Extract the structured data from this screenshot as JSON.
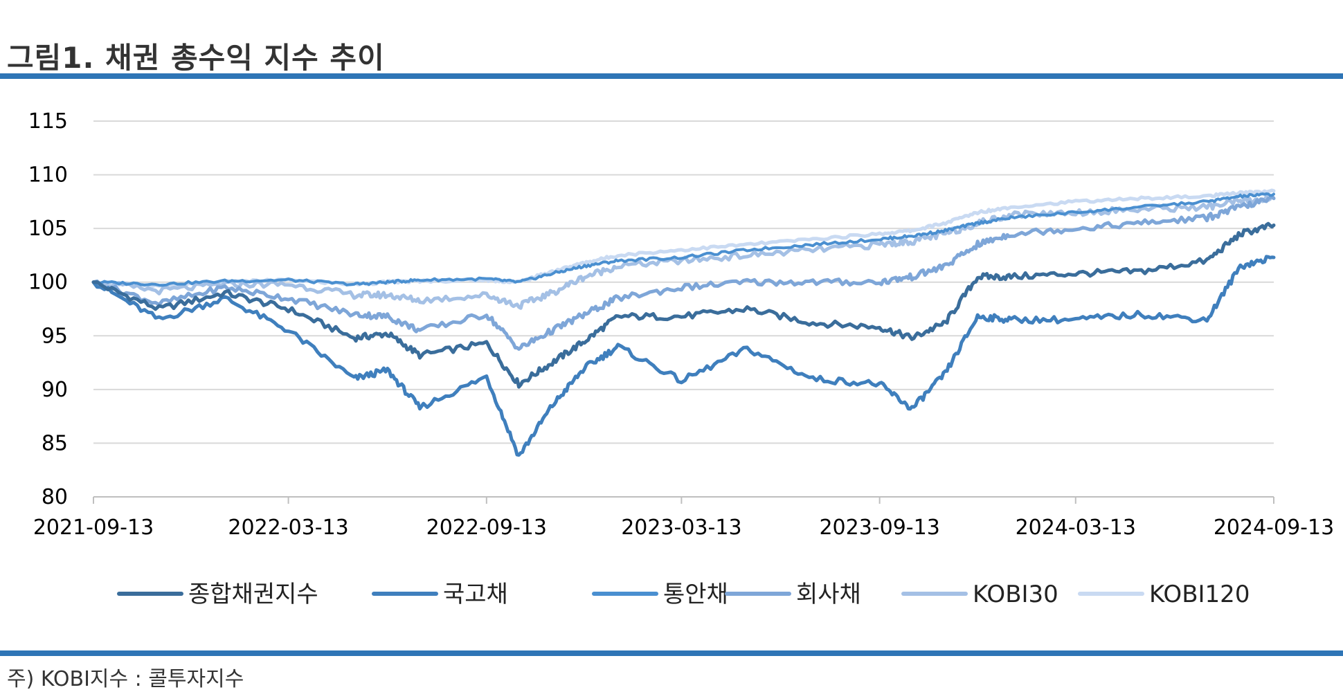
{
  "header": {
    "title": "그림1. 채권 총수익 지수 추이"
  },
  "footer": {
    "note": "주) KOBI지수 : 콜투자지수"
  },
  "chart_data": {
    "type": "line",
    "title": "",
    "xlabel": "",
    "ylabel": "",
    "ylim": [
      80,
      115
    ],
    "yticks": [
      80,
      85,
      90,
      95,
      100,
      105,
      110,
      115
    ],
    "xticks": [
      "2021-09-13",
      "2022-03-13",
      "2022-09-13",
      "2023-03-13",
      "2023-09-13",
      "2024-03-13",
      "2024-09-13"
    ],
    "grid": "horizontal",
    "legend_position": "bottom",
    "x": [
      "2021-09-13",
      "2021-11-13",
      "2022-01-13",
      "2022-03-13",
      "2022-05-13",
      "2022-06-13",
      "2022-07-13",
      "2022-09-13",
      "2022-10-13",
      "2022-11-13",
      "2022-12-13",
      "2023-01-13",
      "2023-03-13",
      "2023-05-13",
      "2023-07-13",
      "2023-09-13",
      "2023-10-13",
      "2023-11-13",
      "2023-12-13",
      "2024-01-13",
      "2024-03-13",
      "2024-05-13",
      "2024-07-13",
      "2024-08-13",
      "2024-09-13"
    ],
    "series": [
      {
        "name": "종합채권지수",
        "color": "#3a6d9b",
        "stroke": 5,
        "values": [
          100.0,
          97.5,
          99.0,
          97.5,
          94.8,
          95.2,
          93.2,
          94.3,
          90.5,
          92.5,
          94.5,
          96.8,
          96.8,
          97.5,
          96.2,
          95.8,
          94.8,
          96.2,
          100.5,
          100.5,
          100.8,
          101.0,
          102.0,
          104.5,
          105.3
        ]
      },
      {
        "name": "국고채",
        "color": "#3f7fbd",
        "stroke": 5,
        "values": [
          100.0,
          96.5,
          98.5,
          95.5,
          91.0,
          91.8,
          88.3,
          91.2,
          83.8,
          88.5,
          92.0,
          94.0,
          90.8,
          93.8,
          91.0,
          90.5,
          88.2,
          91.5,
          96.8,
          96.5,
          96.5,
          97.0,
          96.5,
          101.5,
          102.3
        ]
      },
      {
        "name": "통안채",
        "color": "#4a8fd0",
        "stroke": 4,
        "values": [
          100.0,
          99.8,
          100.1,
          100.2,
          99.8,
          100.0,
          100.2,
          100.3,
          100.0,
          100.8,
          101.5,
          102.0,
          102.3,
          103.0,
          103.5,
          104.0,
          104.3,
          104.8,
          105.5,
          106.0,
          106.5,
          107.0,
          107.5,
          108.0,
          108.2
        ]
      },
      {
        "name": "회사채",
        "color": "#7ea6d8",
        "stroke": 5,
        "values": [
          100.0,
          98.0,
          99.5,
          98.5,
          97.0,
          96.8,
          95.5,
          97.0,
          93.8,
          95.5,
          97.0,
          98.5,
          99.5,
          100.0,
          100.0,
          100.0,
          100.5,
          101.5,
          103.5,
          104.5,
          105.0,
          105.5,
          106.0,
          107.0,
          107.8
        ]
      },
      {
        "name": "KOBI30",
        "color": "#a4c0e5",
        "stroke": 5,
        "values": [
          100.0,
          99.2,
          99.8,
          99.8,
          98.8,
          98.8,
          98.3,
          98.8,
          97.8,
          99.0,
          100.5,
          101.5,
          102.0,
          102.5,
          103.0,
          103.5,
          103.8,
          104.5,
          105.5,
          106.3,
          106.5,
          106.8,
          107.0,
          107.5,
          107.8
        ]
      },
      {
        "name": "KOBI120",
        "color": "#c9daf2",
        "stroke": 5,
        "values": [
          100.0,
          99.6,
          100.0,
          100.2,
          99.8,
          100.0,
          100.1,
          100.2,
          100.0,
          101.0,
          101.8,
          102.5,
          103.0,
          103.5,
          104.0,
          104.5,
          104.8,
          105.5,
          106.5,
          107.0,
          107.5,
          107.8,
          108.0,
          108.3,
          108.5
        ]
      }
    ]
  }
}
